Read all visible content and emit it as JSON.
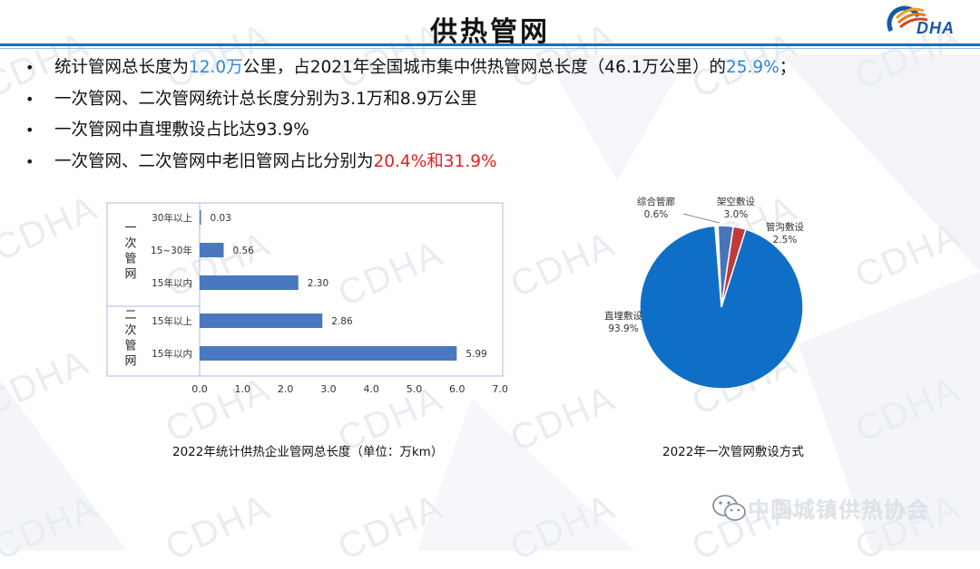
{
  "slide": {
    "title": "供热管网",
    "logo_text": "DHA",
    "watermark": "CDHA",
    "footer": "中国城镇供热协会"
  },
  "bullets": [
    {
      "parts": [
        {
          "text": "统计管网总长度为",
          "style": "normal"
        },
        {
          "text": "12.0万",
          "style": "blue"
        },
        {
          "text": "公里，占2021年全国城市集中供热管网总长度（46.1万公里）的",
          "style": "normal"
        },
        {
          "text": "25.9%",
          "style": "blue"
        },
        {
          "text": "；",
          "style": "normal"
        }
      ]
    },
    {
      "parts": [
        {
          "text": "一次管网、二次管网统计总长度分别为3.1万和8.9万公里",
          "style": "normal"
        }
      ]
    },
    {
      "parts": [
        {
          "text": "一次管网中直埋敷设占比达93.9%",
          "style": "normal"
        }
      ]
    },
    {
      "parts": [
        {
          "text": "一次管网、二次管网中老旧管网占比分别为",
          "style": "normal"
        },
        {
          "text": "20.4%和31.9%",
          "style": "red"
        }
      ]
    }
  ],
  "colors": {
    "accent_blue": "#2e86d6",
    "accent_red": "#e02020",
    "bar": "#4a78c0",
    "header_line": "#1c6fb8"
  },
  "chart_data": [
    {
      "type": "bar",
      "orientation": "horizontal",
      "caption": "2022年统计供热企业管网总长度（单位：万km）",
      "groups": [
        {
          "label": "一次管网",
          "categories": [
            "30年以上",
            "15~30年",
            "15年以内"
          ],
          "values": [
            0.03,
            0.56,
            2.3
          ]
        },
        {
          "label": "二次管网",
          "categories": [
            "15年以上",
            "15年以内"
          ],
          "values": [
            2.86,
            5.99
          ]
        }
      ],
      "data_labels": [
        "0.03",
        "0.56",
        "2.30",
        "2.86",
        "5.99"
      ],
      "xlim": [
        0,
        7
      ],
      "xticks": [
        "0.0",
        "1.0",
        "2.0",
        "3.0",
        "4.0",
        "5.0",
        "6.0",
        "7.0"
      ],
      "grid": false
    },
    {
      "type": "pie",
      "caption": "2022年一次管网敷设方式",
      "slices": [
        {
          "label": "综合管廊",
          "value": 0.6,
          "value_label": "0.6%",
          "color": "#ffffff"
        },
        {
          "label": "架空敷设",
          "value": 3.0,
          "value_label": "3.0%",
          "color": "#4a74b8"
        },
        {
          "label": "管沟敷设",
          "value": 2.5,
          "value_label": "2.5%",
          "color": "#c0393b"
        },
        {
          "label": "直埋敷设",
          "value": 93.9,
          "value_label": "93.9%",
          "color": "#0f6fc6"
        }
      ]
    }
  ]
}
